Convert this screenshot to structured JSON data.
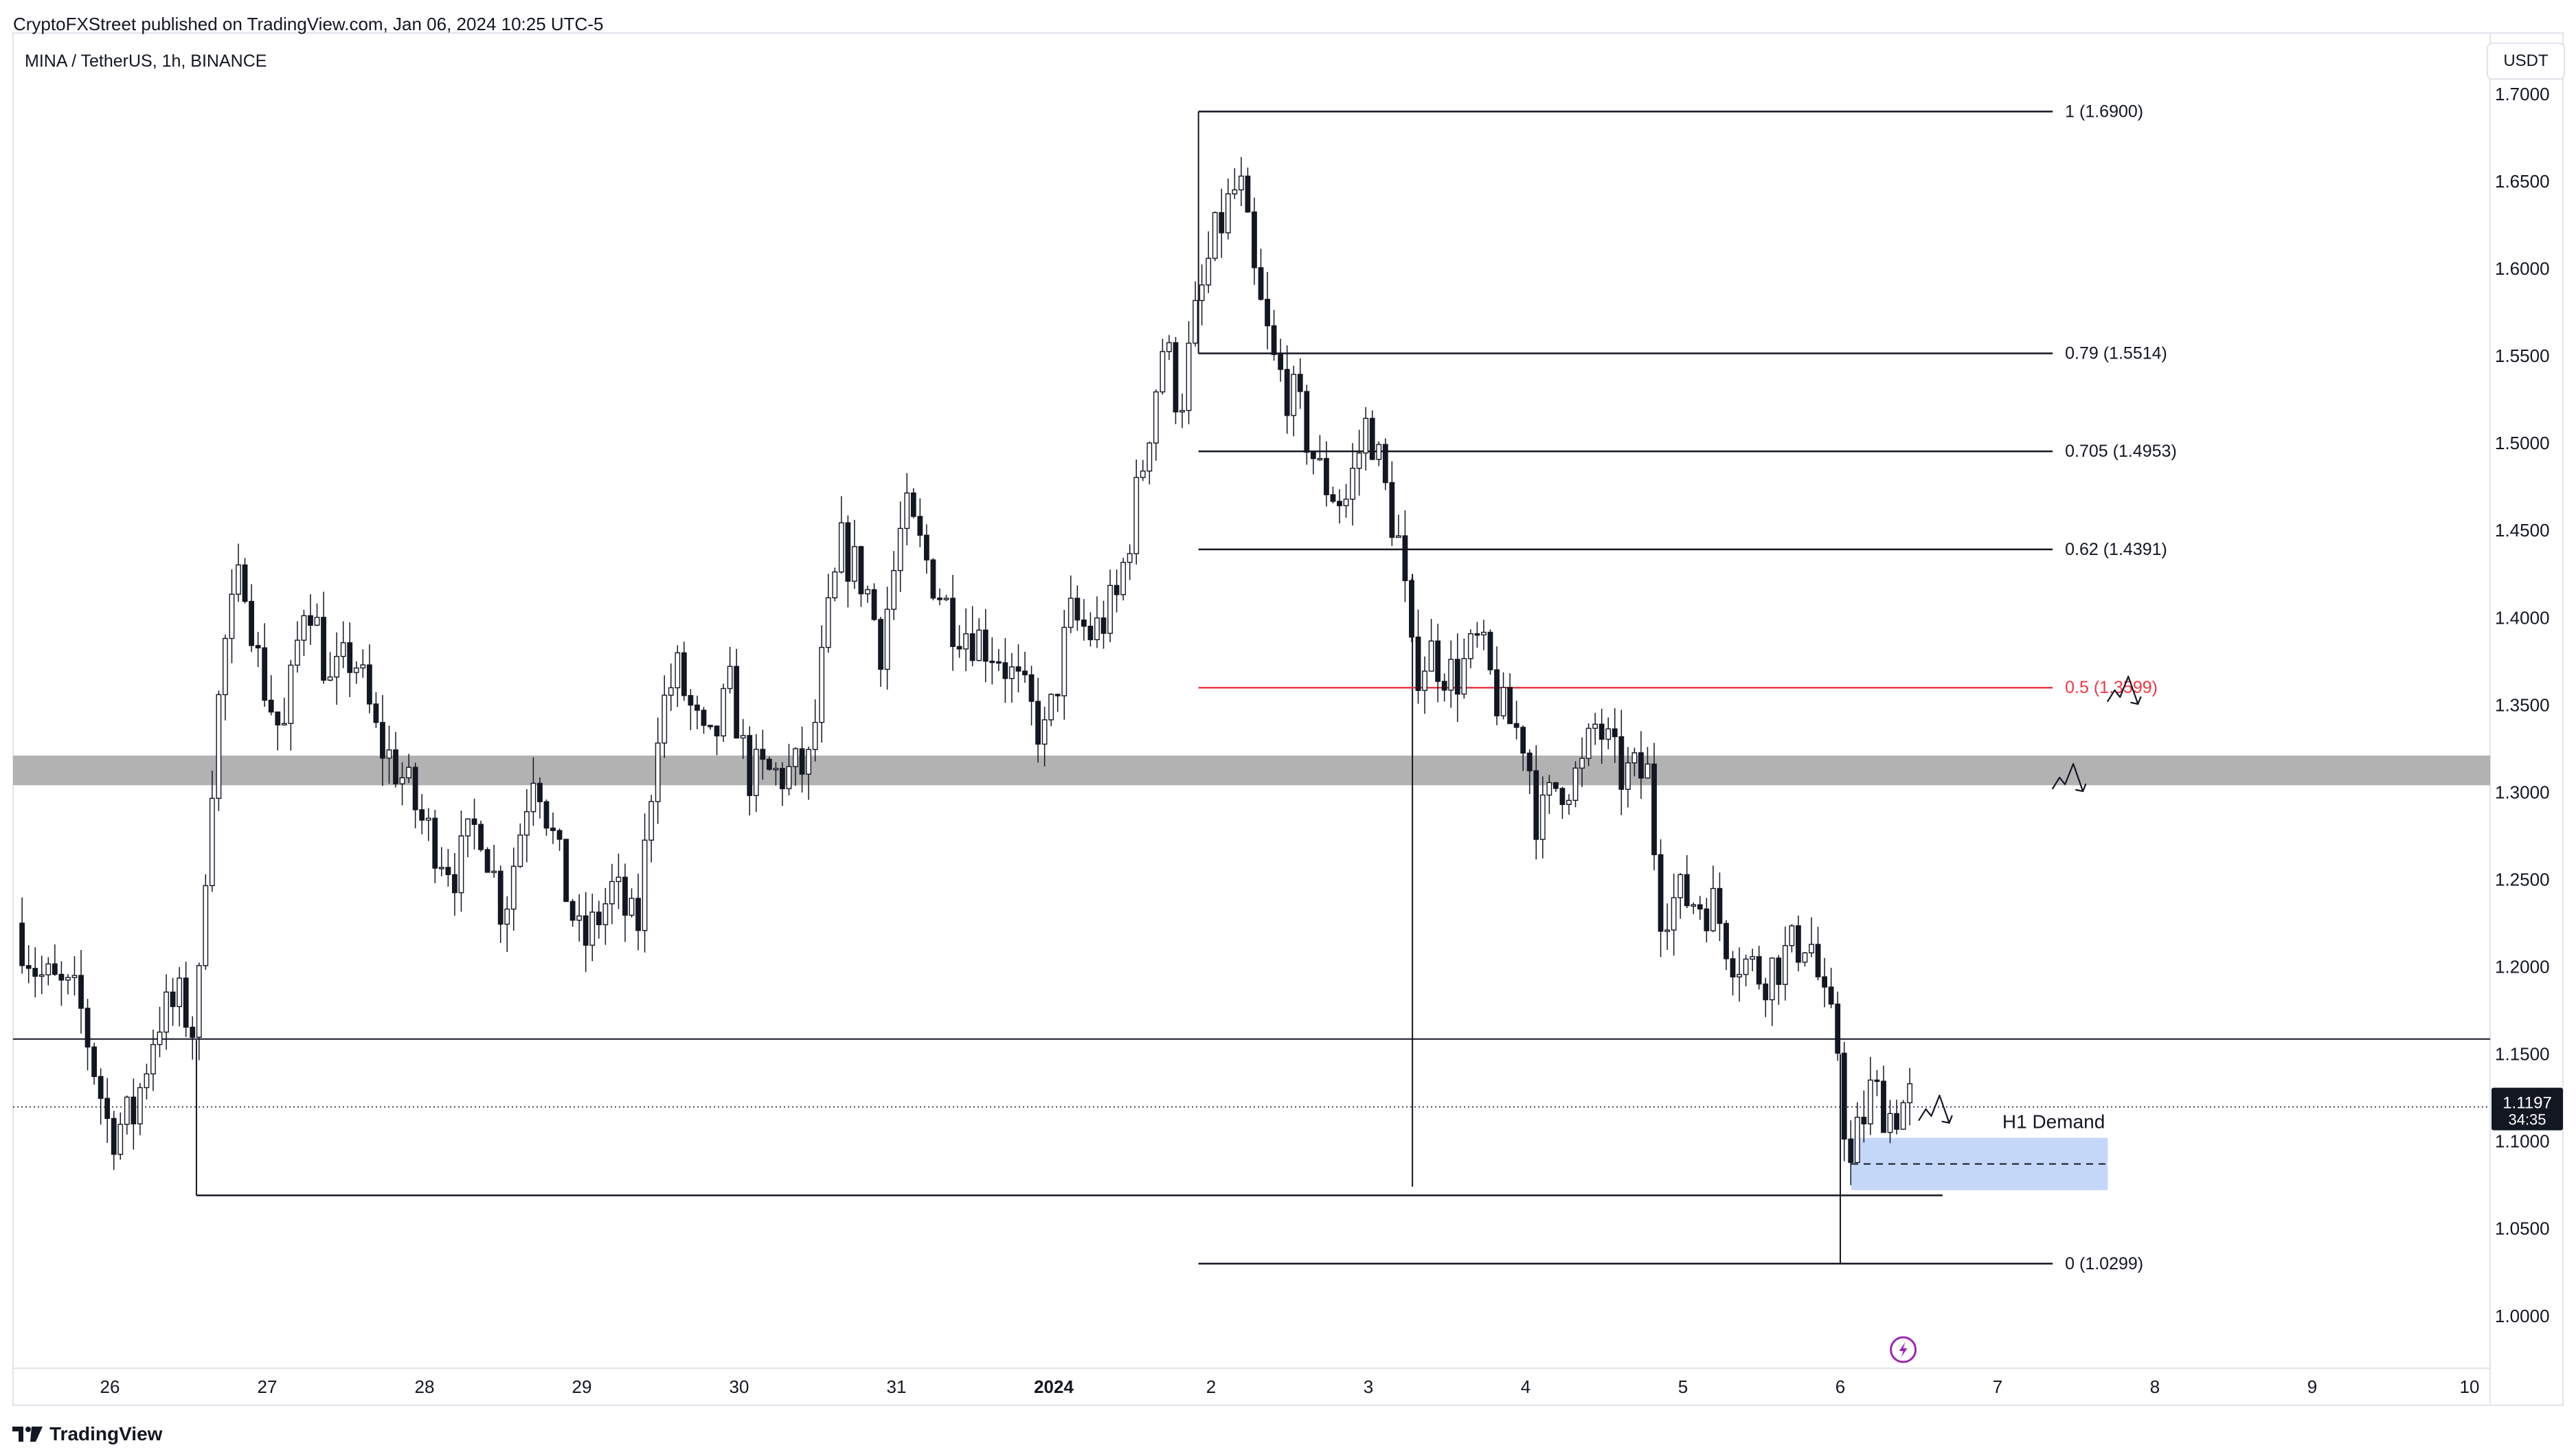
{
  "header": {
    "publisher": "CryptoFXStreet published on TradingView.com, Jan 06, 2024 10:25 UTC-5",
    "symbol": "MINA / TetherUS, 1h, BINANCE"
  },
  "price_axis": {
    "currency": "USDT"
  },
  "current_price": {
    "value": "1.1197",
    "countdown": "34:35"
  },
  "brand": {
    "name": "TradingView"
  },
  "colors": {
    "fib_mid": "#f23645",
    "zone": "#b2b2b2",
    "demand": "#bbd0f7"
  },
  "chart_data": {
    "type": "candlestick",
    "symbol": "MINA / TetherUS",
    "interval": "1h",
    "exchange": "BINANCE",
    "ylim": [
      0.97,
      1.735
    ],
    "xlim_days": [
      -0.6,
      15.1
    ],
    "y_ticks": [
      "1.7000",
      "1.6500",
      "1.6000",
      "1.5500",
      "1.5000",
      "1.4500",
      "1.4000",
      "1.3500",
      "1.3000",
      "1.2500",
      "1.2000",
      "1.1500",
      "1.1000",
      "1.0500",
      "1.0000"
    ],
    "x_ticks": [
      {
        "label": "26",
        "day": 0,
        "bold": false
      },
      {
        "label": "27",
        "day": 1,
        "bold": false
      },
      {
        "label": "28",
        "day": 2,
        "bold": false
      },
      {
        "label": "29",
        "day": 3,
        "bold": false
      },
      {
        "label": "30",
        "day": 4,
        "bold": false
      },
      {
        "label": "31",
        "day": 5,
        "bold": false
      },
      {
        "label": "2024",
        "day": 6,
        "bold": true
      },
      {
        "label": "2",
        "day": 7,
        "bold": false
      },
      {
        "label": "3",
        "day": 8,
        "bold": false
      },
      {
        "label": "4",
        "day": 9,
        "bold": false
      },
      {
        "label": "5",
        "day": 10,
        "bold": false
      },
      {
        "label": "6",
        "day": 11,
        "bold": false
      },
      {
        "label": "7",
        "day": 12,
        "bold": false
      },
      {
        "label": "8",
        "day": 13,
        "bold": false
      },
      {
        "label": "9",
        "day": 14,
        "bold": false
      },
      {
        "label": "10",
        "day": 15,
        "bold": false
      }
    ],
    "path": [
      [
        -0.6,
        1.225
      ],
      [
        -0.45,
        1.195
      ],
      [
        -0.2,
        1.18
      ],
      [
        0.0,
        1.105
      ],
      [
        0.15,
        1.115
      ],
      [
        0.3,
        1.17
      ],
      [
        0.45,
        1.18
      ],
      [
        0.55,
        1.16
      ],
      [
        0.62,
        1.28
      ],
      [
        0.72,
        1.38
      ],
      [
        0.85,
        1.43
      ],
      [
        0.95,
        1.37
      ],
      [
        1.1,
        1.33
      ],
      [
        1.25,
        1.42
      ],
      [
        1.4,
        1.36
      ],
      [
        1.55,
        1.38
      ],
      [
        1.7,
        1.33
      ],
      [
        1.85,
        1.31
      ],
      [
        2.0,
        1.28
      ],
      [
        2.2,
        1.255
      ],
      [
        2.35,
        1.285
      ],
      [
        2.5,
        1.23
      ],
      [
        2.7,
        1.32
      ],
      [
        2.85,
        1.26
      ],
      [
        3.0,
        1.21
      ],
      [
        3.2,
        1.245
      ],
      [
        3.35,
        1.218
      ],
      [
        3.48,
        1.34
      ],
      [
        3.6,
        1.37
      ],
      [
        3.8,
        1.32
      ],
      [
        3.95,
        1.36
      ],
      [
        4.05,
        1.31
      ],
      [
        4.3,
        1.31
      ],
      [
        4.45,
        1.315
      ],
      [
        4.55,
        1.39
      ],
      [
        4.65,
        1.44
      ],
      [
        4.8,
        1.42
      ],
      [
        4.9,
        1.385
      ],
      [
        5.05,
        1.46
      ],
      [
        5.2,
        1.43
      ],
      [
        5.35,
        1.4
      ],
      [
        5.5,
        1.39
      ],
      [
        5.65,
        1.38
      ],
      [
        5.8,
        1.355
      ],
      [
        5.95,
        1.33
      ],
      [
        6.1,
        1.4
      ],
      [
        6.25,
        1.39
      ],
      [
        6.4,
        1.41
      ],
      [
        6.55,
        1.48
      ],
      [
        6.7,
        1.56
      ],
      [
        6.8,
        1.52
      ],
      [
        6.9,
        1.57
      ],
      [
        7.0,
        1.61
      ],
      [
        7.08,
        1.63
      ],
      [
        7.18,
        1.65
      ],
      [
        7.28,
        1.59
      ],
      [
        7.4,
        1.545
      ],
      [
        7.55,
        1.52
      ],
      [
        7.7,
        1.48
      ],
      [
        7.85,
        1.465
      ],
      [
        8.0,
        1.515
      ],
      [
        8.1,
        1.475
      ],
      [
        8.2,
        1.44
      ],
      [
        8.28,
        1.37
      ],
      [
        8.4,
        1.38
      ],
      [
        8.55,
        1.365
      ],
      [
        8.7,
        1.385
      ],
      [
        8.85,
        1.345
      ],
      [
        9.0,
        1.33
      ],
      [
        9.08,
        1.28
      ],
      [
        9.2,
        1.305
      ],
      [
        9.35,
        1.31
      ],
      [
        9.45,
        1.34
      ],
      [
        9.6,
        1.31
      ],
      [
        9.78,
        1.31
      ],
      [
        9.85,
        1.235
      ],
      [
        10.0,
        1.24
      ],
      [
        10.2,
        1.235
      ],
      [
        10.3,
        1.21
      ],
      [
        10.5,
        1.195
      ],
      [
        10.7,
        1.21
      ],
      [
        10.8,
        1.22
      ],
      [
        10.9,
        1.175
      ],
      [
        11.0,
        1.15
      ],
      [
        11.05,
        1.075
      ],
      [
        11.1,
        1.1
      ],
      [
        11.2,
        1.13
      ],
      [
        11.32,
        1.115
      ],
      [
        11.45,
        1.125
      ]
    ],
    "fib_levels": [
      {
        "label": "1 (1.6900)",
        "value": 1.69,
        "color": "#131722"
      },
      {
        "label": "0.79 (1.5514)",
        "value": 1.5514,
        "color": "#131722"
      },
      {
        "label": "0.705 (1.4953)",
        "value": 1.4953,
        "color": "#131722"
      },
      {
        "label": "0.62 (1.4391)",
        "value": 1.4391,
        "color": "#131722"
      },
      {
        "label": "0.5 (1.3599)",
        "value": 1.3599,
        "color": "#f23645"
      },
      {
        "label": "0 (1.0299)",
        "value": 1.0299,
        "color": "#131722"
      }
    ],
    "fib_x_start_day": 6.92,
    "fib_x_end_day": 12.35,
    "resistance_zone": {
      "low": 1.304,
      "high": 1.321
    },
    "horizontal_line": 1.1586,
    "support_line": {
      "value": 1.069,
      "from_day": 0.55,
      "to_day": 11.65
    },
    "demand_zone": {
      "label": "H1 Demand",
      "low": 1.072,
      "high": 1.102,
      "mid": 1.087,
      "from_day": 11.07,
      "to_day": 12.7
    },
    "vertical_lines": [
      {
        "day": 0.55,
        "from": 1.069,
        "to": 1.158
      },
      {
        "day": 8.28,
        "from": 1.074,
        "to": 1.425
      },
      {
        "day": 11.0,
        "from": 1.03,
        "to": 1.15
      }
    ],
    "arrows": [
      {
        "day": 11.5,
        "price": 1.12
      },
      {
        "day": 12.7,
        "price": 1.36
      },
      {
        "day": 12.35,
        "price": 1.31
      }
    ]
  }
}
